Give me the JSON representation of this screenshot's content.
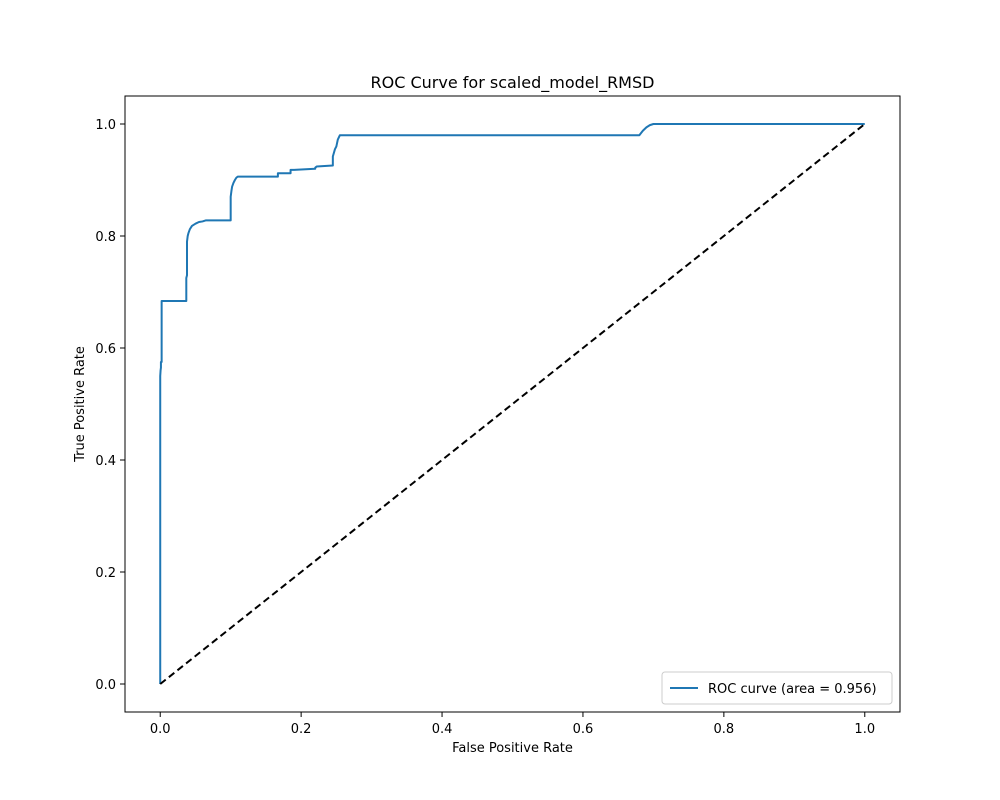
{
  "chart_data": {
    "type": "line",
    "title": "ROC Curve for scaled_model_RMSD",
    "xlabel": "False Positive Rate",
    "ylabel": "True Positive Rate",
    "xlim": [
      -0.05,
      1.05
    ],
    "ylim": [
      -0.05,
      1.05
    ],
    "xticks": [
      0.0,
      0.2,
      0.4,
      0.6,
      0.8,
      1.0
    ],
    "yticks": [
      0.0,
      0.2,
      0.4,
      0.6,
      0.8,
      1.0
    ],
    "xtick_labels": [
      "0.0",
      "0.2",
      "0.4",
      "0.6",
      "0.8",
      "1.0"
    ],
    "ytick_labels": [
      "0.0",
      "0.2",
      "0.4",
      "0.6",
      "0.8",
      "1.0"
    ],
    "grid": false,
    "legend_position": "lower right",
    "series": [
      {
        "name": "ROC curve (area = 0.956)",
        "color": "#1f77b4",
        "style": "solid",
        "x": [
          0.0,
          0.0,
          0.0005,
          0.001,
          0.001,
          0.002,
          0.002,
          0.037,
          0.037,
          0.038,
          0.038,
          0.039,
          0.04,
          0.042,
          0.045,
          0.05,
          0.055,
          0.06,
          0.065,
          0.1,
          0.1,
          0.101,
          0.102,
          0.104,
          0.106,
          0.108,
          0.11,
          0.167,
          0.167,
          0.185,
          0.185,
          0.19,
          0.22,
          0.22,
          0.222,
          0.245,
          0.245,
          0.248,
          0.25,
          0.252,
          0.255,
          0.68,
          0.685,
          0.69,
          0.695,
          0.7,
          1.0
        ],
        "y": [
          0.0,
          0.55,
          0.56,
          0.565,
          0.575,
          0.575,
          0.684,
          0.684,
          0.725,
          0.73,
          0.79,
          0.8,
          0.805,
          0.812,
          0.818,
          0.822,
          0.825,
          0.826,
          0.828,
          0.828,
          0.87,
          0.88,
          0.888,
          0.895,
          0.9,
          0.904,
          0.906,
          0.906,
          0.912,
          0.912,
          0.918,
          0.918,
          0.92,
          0.922,
          0.924,
          0.926,
          0.942,
          0.955,
          0.96,
          0.972,
          0.98,
          0.98,
          0.988,
          0.994,
          0.998,
          1.0,
          1.0
        ]
      },
      {
        "name": "",
        "color": "#000000",
        "style": "dashed",
        "x": [
          0.0,
          1.0
        ],
        "y": [
          0.0,
          1.0
        ]
      }
    ]
  }
}
